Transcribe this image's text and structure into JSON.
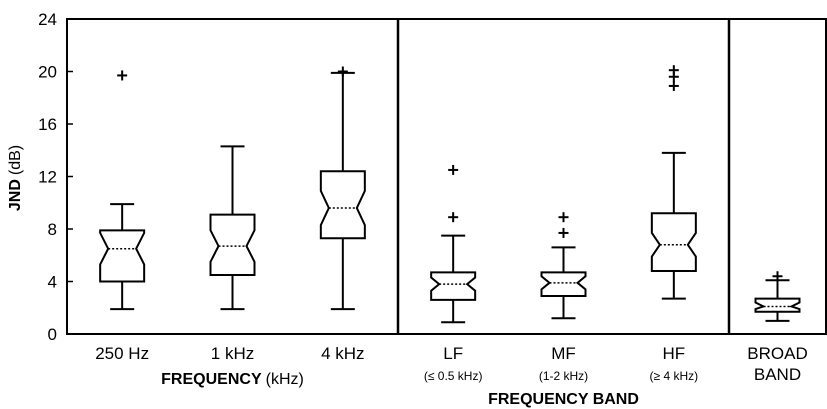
{
  "chart_data": {
    "type": "box",
    "notched": true,
    "ylabel_bold": "JND",
    "ylabel_unit": "(dB)",
    "ylim": [
      0,
      24
    ],
    "yticks": [
      "0",
      "4",
      "8",
      "12",
      "16",
      "20",
      "24"
    ],
    "groups": [
      {
        "label_bold": "FREQUENCY",
        "label_unit": "(kHz)",
        "categories": [
          {
            "label": "250 Hz",
            "sub": "",
            "min": 1.9,
            "q1": 4.0,
            "median": 6.5,
            "q3": 7.9,
            "max": 9.9,
            "notch_low": 5.3,
            "notch_high": 7.7,
            "outliers": [
              19.7
            ]
          },
          {
            "label": "1 kHz",
            "sub": "",
            "min": 1.9,
            "q1": 4.5,
            "median": 6.7,
            "q3": 9.1,
            "max": 14.3,
            "notch_low": 5.5,
            "notch_high": 7.9,
            "outliers": []
          },
          {
            "label": "4 kHz",
            "sub": "",
            "min": 1.9,
            "q1": 7.3,
            "median": 9.6,
            "q3": 12.4,
            "max": 19.9,
            "notch_low": 8.3,
            "notch_high": 10.9,
            "outliers": [
              20.0
            ]
          }
        ]
      },
      {
        "label_bold": "FREQUENCY BAND",
        "label_unit": "",
        "categories": [
          {
            "label": "LF",
            "sub": "(≤ 0.5 kHz)",
            "min": 0.9,
            "q1": 2.6,
            "median": 3.8,
            "q3": 4.7,
            "max": 7.5,
            "notch_low": 3.3,
            "notch_high": 4.3,
            "outliers": [
              8.9,
              12.5
            ]
          },
          {
            "label": "MF",
            "sub": "(1-2 kHz)",
            "min": 1.2,
            "q1": 2.9,
            "median": 3.9,
            "q3": 4.7,
            "max": 6.6,
            "notch_low": 3.4,
            "notch_high": 4.4,
            "outliers": [
              7.7,
              8.9
            ]
          },
          {
            "label": "HF",
            "sub": "(≥ 4 kHz)",
            "min": 2.7,
            "q1": 4.8,
            "median": 6.8,
            "q3": 9.2,
            "max": 13.8,
            "notch_low": 5.9,
            "notch_high": 7.7,
            "outliers": [
              18.9,
              19.6,
              20.1
            ]
          }
        ]
      },
      {
        "label_bold": "",
        "label_unit": "",
        "categories": [
          {
            "label": "BROAD",
            "label2": "BAND",
            "sub": "",
            "min": 1.0,
            "q1": 1.7,
            "median": 2.1,
            "q3": 2.7,
            "max": 4.1,
            "notch_low": 1.9,
            "notch_high": 2.4,
            "outliers": [
              4.4
            ]
          }
        ]
      }
    ]
  }
}
